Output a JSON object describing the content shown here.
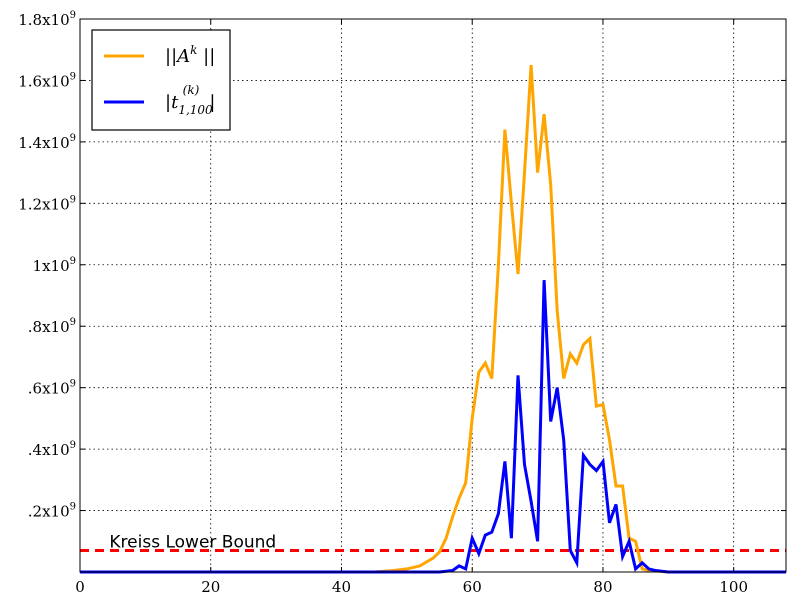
{
  "chart_data": {
    "type": "line",
    "title": "",
    "xlabel": "",
    "ylabel": "",
    "xlim": [
      0,
      108
    ],
    "ylim": [
      0,
      1.8
    ],
    "y_unit_label": "x10",
    "y_unit_exponent": "9",
    "grid": true,
    "grid_style": "dotted",
    "legend_placement": "top-left",
    "xticks": [
      "0",
      "20",
      "40",
      "60",
      "80",
      "100"
    ],
    "xtick_values": [
      0,
      20,
      40,
      60,
      80,
      100
    ],
    "ytick_values": [
      0.2,
      0.4,
      0.6,
      0.8,
      1.0,
      1.2,
      1.4,
      1.6,
      1.8
    ],
    "ytick_mantissas": [
      ".2",
      ".4",
      ".6",
      ".8",
      "1",
      "1.2",
      "1.4",
      "1.6",
      "1.8"
    ],
    "series": [
      {
        "name": "||A^k||",
        "legend_label": {
          "prefix": "||A",
          "sup": "k",
          "suffix": " ||"
        },
        "color": "#FFA500",
        "points": [
          [
            0,
            0
          ],
          [
            45,
            0
          ],
          [
            48,
            0.005
          ],
          [
            50,
            0.01
          ],
          [
            52,
            0.02
          ],
          [
            54,
            0.045
          ],
          [
            55,
            0.065
          ],
          [
            56,
            0.11
          ],
          [
            57,
            0.18
          ],
          [
            58,
            0.24
          ],
          [
            59,
            0.29
          ],
          [
            60,
            0.5
          ],
          [
            61,
            0.65
          ],
          [
            62,
            0.68
          ],
          [
            63,
            0.63
          ],
          [
            64,
            1.0
          ],
          [
            65,
            1.44
          ],
          [
            66,
            1.2
          ],
          [
            67,
            0.97
          ],
          [
            68,
            1.3
          ],
          [
            69,
            1.65
          ],
          [
            70,
            1.3
          ],
          [
            71,
            1.49
          ],
          [
            72,
            1.26
          ],
          [
            73,
            0.85
          ],
          [
            74,
            0.63
          ],
          [
            75,
            0.71
          ],
          [
            76,
            0.68
          ],
          [
            77,
            0.74
          ],
          [
            78,
            0.76
          ],
          [
            79,
            0.54
          ],
          [
            80,
            0.545
          ],
          [
            81,
            0.43
          ],
          [
            82,
            0.28
          ],
          [
            83,
            0.28
          ],
          [
            84,
            0.11
          ],
          [
            85,
            0.1
          ],
          [
            86,
            0.01
          ],
          [
            87,
            0.005
          ],
          [
            90,
            0
          ],
          [
            108,
            0
          ]
        ]
      },
      {
        "name": "|t_{1,100}^{(k)}|",
        "legend_label": {
          "prefix": "|t",
          "sup": "(k)",
          "sub": "1,100",
          "suffix": "|"
        },
        "color": "#0000FF",
        "points": [
          [
            0,
            0
          ],
          [
            55,
            0
          ],
          [
            57,
            0.005
          ],
          [
            58,
            0.02
          ],
          [
            59,
            0.01
          ],
          [
            60,
            0.11
          ],
          [
            61,
            0.06
          ],
          [
            62,
            0.12
          ],
          [
            63,
            0.13
          ],
          [
            64,
            0.19
          ],
          [
            65,
            0.36
          ],
          [
            66,
            0.11
          ],
          [
            67,
            0.64
          ],
          [
            68,
            0.35
          ],
          [
            69,
            0.23
          ],
          [
            70,
            0.1
          ],
          [
            71,
            0.95
          ],
          [
            72,
            0.49
          ],
          [
            73,
            0.6
          ],
          [
            74,
            0.43
          ],
          [
            75,
            0.07
          ],
          [
            76,
            0.03
          ],
          [
            77,
            0.38
          ],
          [
            78,
            0.35
          ],
          [
            79,
            0.33
          ],
          [
            80,
            0.36
          ],
          [
            81,
            0.16
          ],
          [
            82,
            0.22
          ],
          [
            83,
            0.05
          ],
          [
            84,
            0.1
          ],
          [
            85,
            0.01
          ],
          [
            86,
            0.03
          ],
          [
            87,
            0.01
          ],
          [
            88,
            0.005
          ],
          [
            90,
            0
          ],
          [
            108,
            0
          ]
        ]
      }
    ],
    "reference_line": {
      "label": "Kreiss Lower Bound",
      "y": 0.07,
      "color": "#FF0000",
      "style": "dashed"
    }
  }
}
